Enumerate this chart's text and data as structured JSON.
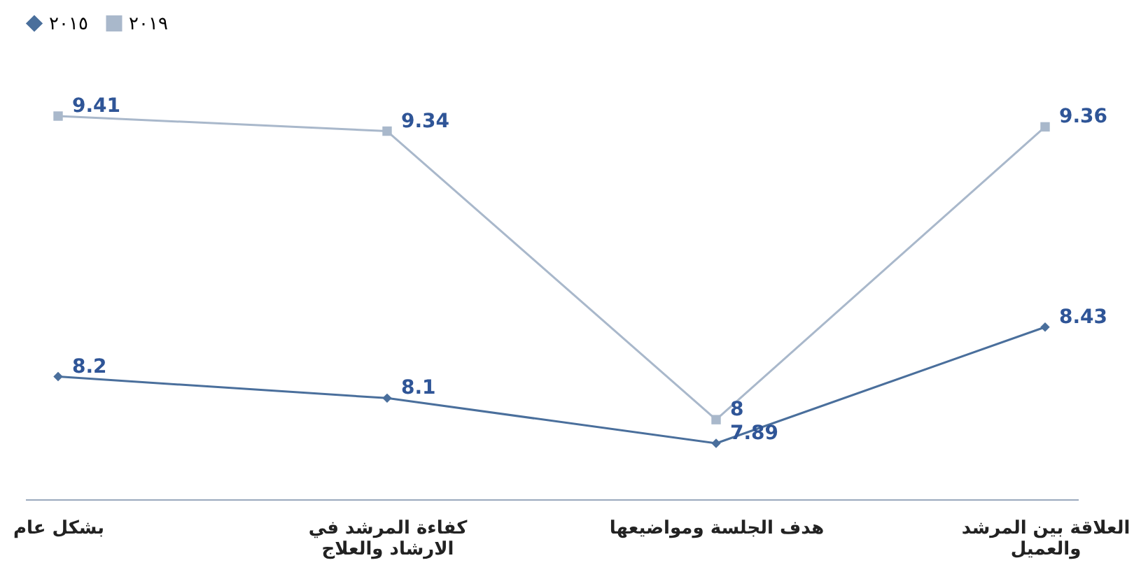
{
  "chart_data": {
    "type": "line",
    "categories": [
      "بشكل عام",
      "كفاءة المرشد في الارشاد والعلاج",
      "هدف الجلسة ومواضيعها",
      "العلاقة بين المرشد والعميل"
    ],
    "series": [
      {
        "name": "٢٠١٥",
        "color": "#4a6f9c",
        "marker": "diamond",
        "values": [
          8.2,
          8.1,
          7.89,
          8.43
        ]
      },
      {
        "name": "٢٠١٩",
        "color": "#a9b8cb",
        "marker": "square",
        "values": [
          9.41,
          9.34,
          8,
          9.36
        ]
      }
    ],
    "data_labels": true,
    "legend": "top",
    "grid": false,
    "line_style": "solid"
  }
}
